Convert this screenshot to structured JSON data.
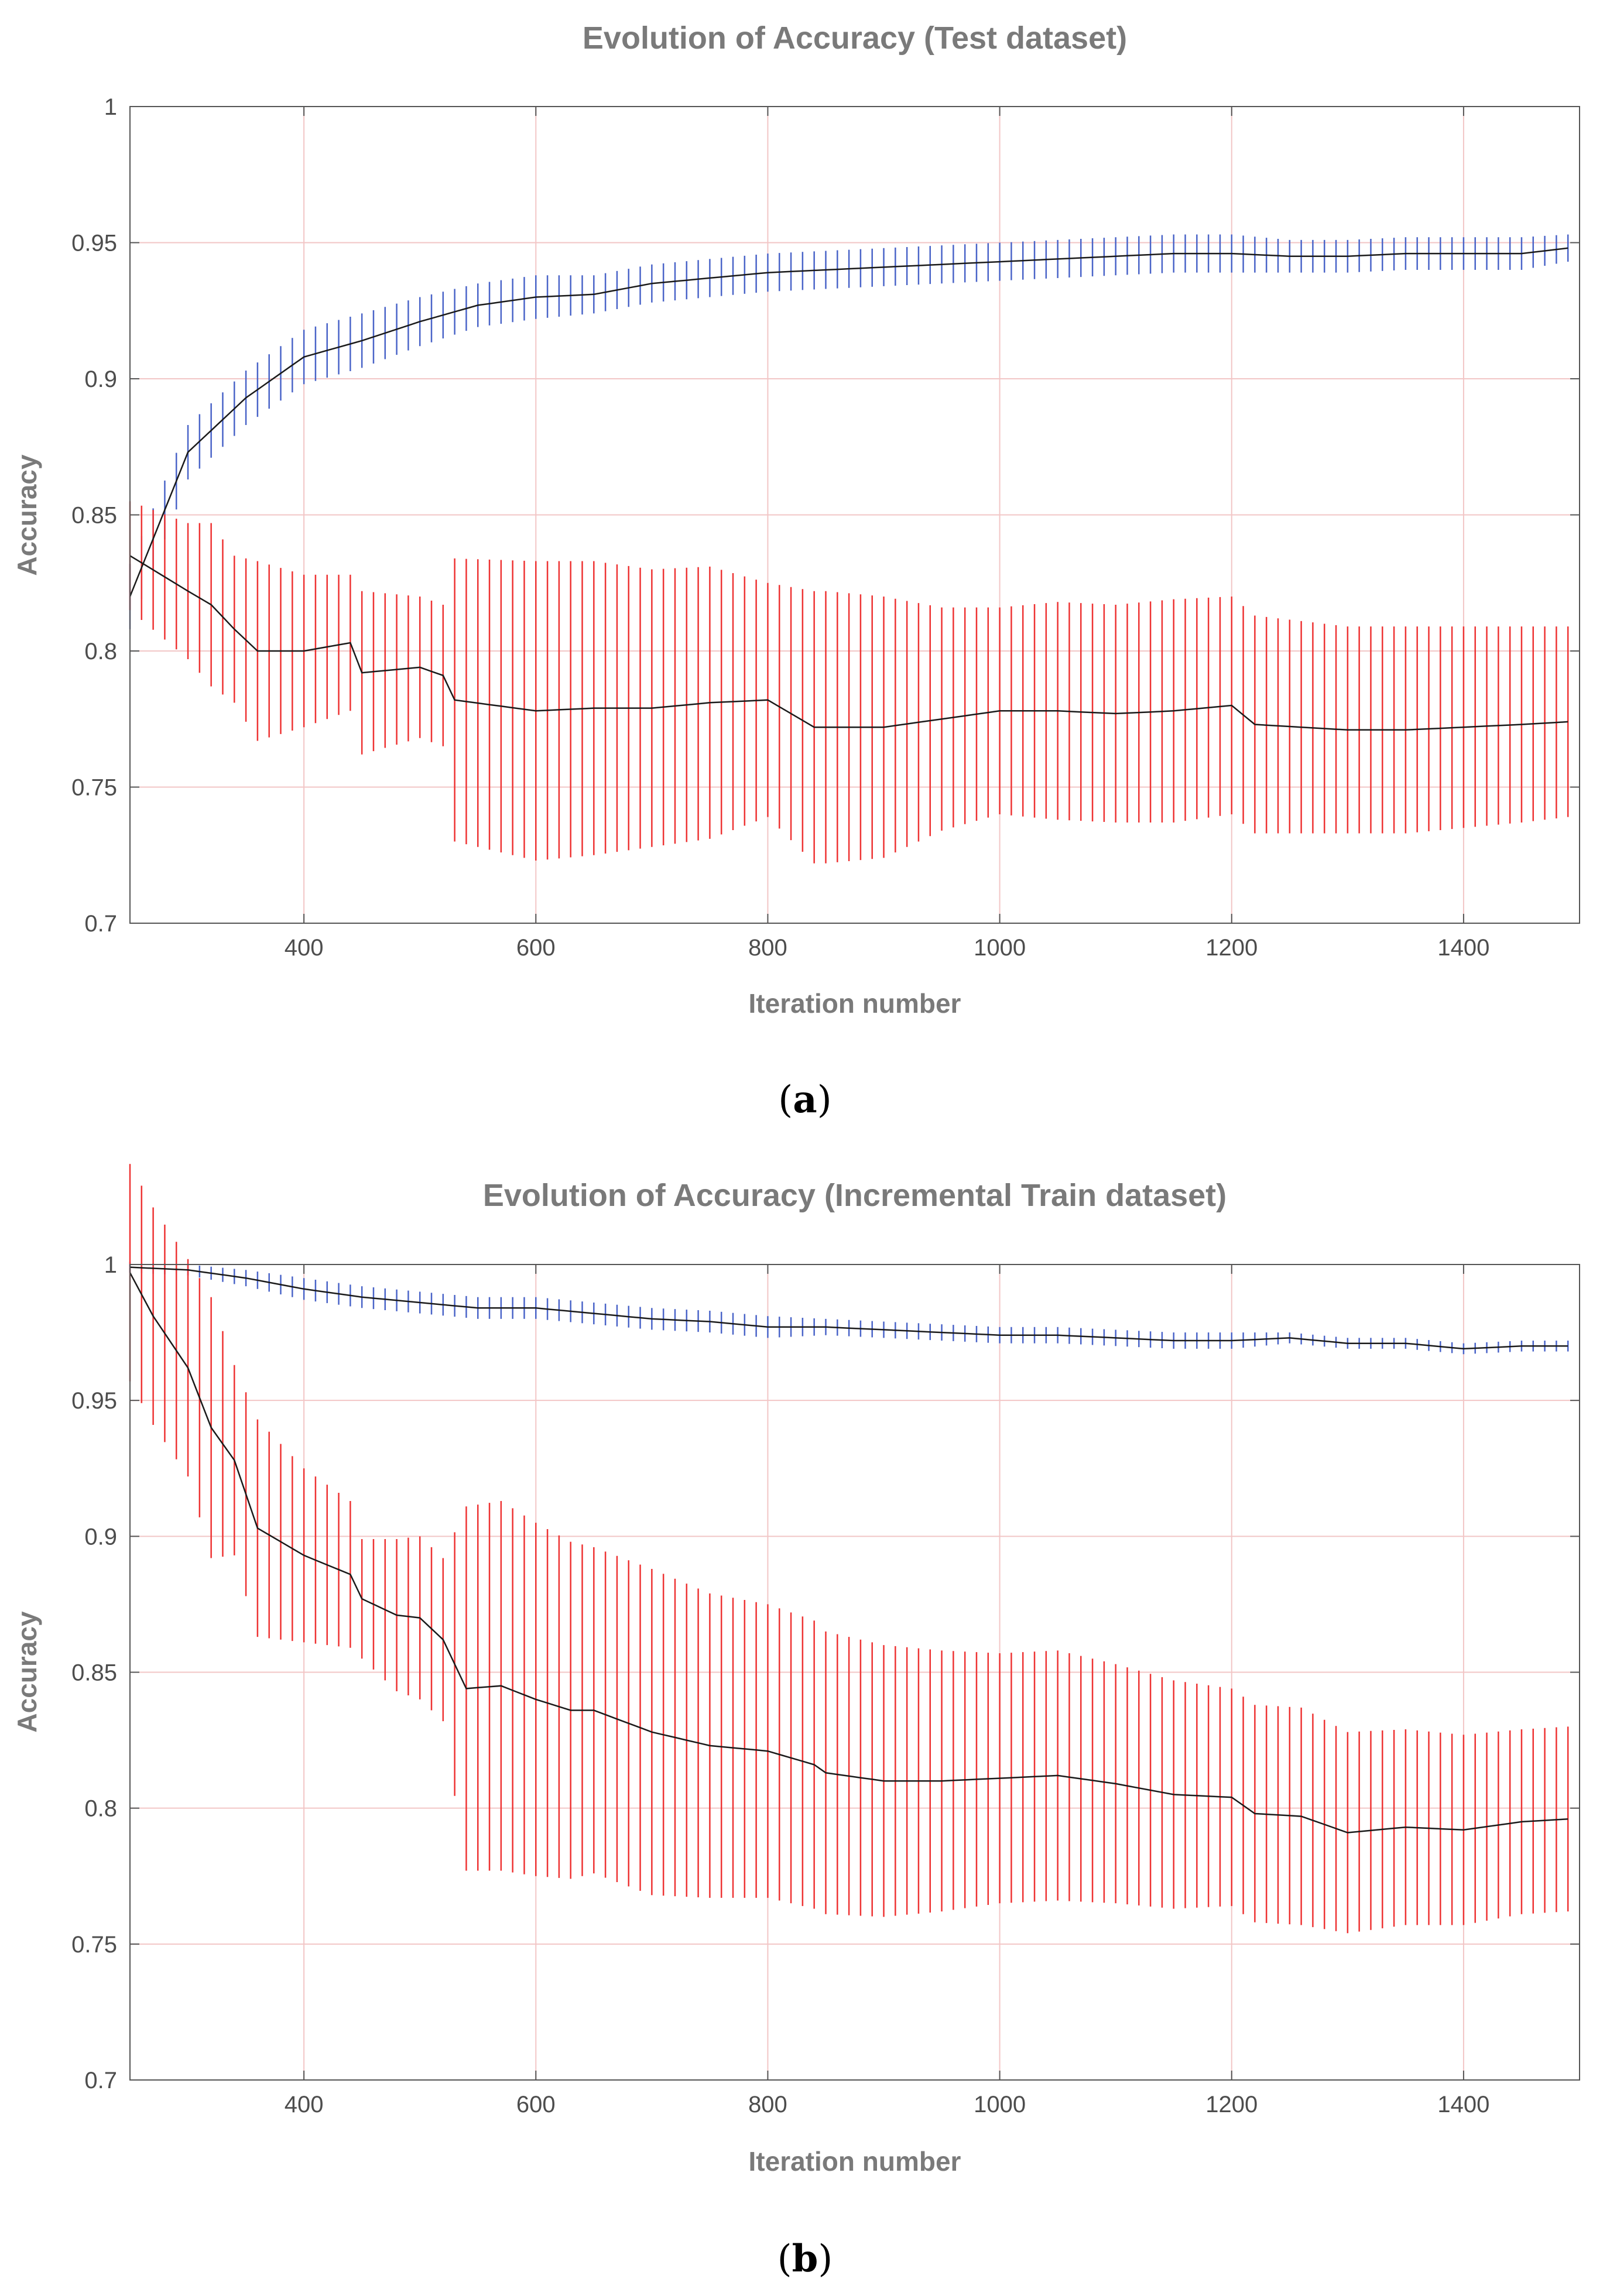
{
  "figure": {
    "captions": [
      {
        "open": "(",
        "letter": "a",
        "close": ")"
      },
      {
        "open": "(",
        "letter": "b",
        "close": ")"
      }
    ]
  },
  "chart_data": [
    {
      "type": "line",
      "title": "Evolution of Accuracy   (Test dataset)",
      "xlabel": "Iteration number",
      "ylabel": "Accuracy",
      "xlim": [
        250,
        1500
      ],
      "ylim": [
        0.7,
        1.0
      ],
      "xticks": [
        400,
        600,
        800,
        1000,
        1200,
        1400
      ],
      "yticks": [
        0.7,
        0.75,
        0.8,
        0.85,
        0.9,
        0.95,
        1.0
      ],
      "ytick_labels": [
        "0.7",
        "0.75",
        "0.8",
        "0.85",
        "0.9",
        "0.95",
        "1"
      ],
      "grid": true,
      "colors": {
        "upper_error": "#4a64c8",
        "lower_error": "#ee3333",
        "mean": "#1a1a1a",
        "grid": "#f2c6c6",
        "axis": "#555555"
      },
      "series": [
        {
          "name": "upper",
          "error_color": "#4a64c8",
          "x": [
            250,
            300,
            350,
            400,
            450,
            500,
            550,
            600,
            650,
            700,
            750,
            800,
            850,
            900,
            950,
            1000,
            1050,
            1100,
            1150,
            1200,
            1250,
            1300,
            1350,
            1400,
            1450,
            1490
          ],
          "mean": [
            0.82,
            0.873,
            0.893,
            0.908,
            0.914,
            0.921,
            0.927,
            0.93,
            0.931,
            0.935,
            0.937,
            0.939,
            0.94,
            0.941,
            0.942,
            0.943,
            0.944,
            0.945,
            0.946,
            0.946,
            0.945,
            0.945,
            0.946,
            0.946,
            0.946,
            0.948
          ],
          "error": [
            0.012,
            0.01,
            0.01,
            0.01,
            0.01,
            0.009,
            0.008,
            0.008,
            0.007,
            0.007,
            0.007,
            0.007,
            0.007,
            0.007,
            0.007,
            0.007,
            0.007,
            0.007,
            0.007,
            0.007,
            0.006,
            0.006,
            0.006,
            0.006,
            0.006,
            0.005
          ]
        },
        {
          "name": "lower",
          "error_color": "#ee3333",
          "x": [
            250,
            300,
            320,
            340,
            360,
            400,
            440,
            450,
            500,
            520,
            530,
            600,
            650,
            700,
            750,
            800,
            840,
            850,
            900,
            950,
            1000,
            1050,
            1100,
            1150,
            1200,
            1220,
            1300,
            1350,
            1400,
            1450,
            1490
          ],
          "mean": [
            0.835,
            0.822,
            0.817,
            0.808,
            0.8,
            0.8,
            0.803,
            0.792,
            0.794,
            0.791,
            0.782,
            0.778,
            0.779,
            0.779,
            0.781,
            0.782,
            0.772,
            0.772,
            0.772,
            0.775,
            0.778,
            0.778,
            0.777,
            0.778,
            0.78,
            0.773,
            0.771,
            0.771,
            0.772,
            0.773,
            0.774
          ],
          "error": [
            0.02,
            0.025,
            0.03,
            0.027,
            0.033,
            0.028,
            0.025,
            0.03,
            0.026,
            0.026,
            0.052,
            0.055,
            0.054,
            0.051,
            0.05,
            0.043,
            0.05,
            0.05,
            0.048,
            0.041,
            0.038,
            0.04,
            0.04,
            0.041,
            0.04,
            0.04,
            0.038,
            0.038,
            0.037,
            0.036,
            0.035
          ]
        }
      ]
    },
    {
      "type": "line",
      "title": "Evolution of Accuracy   (Incremental Train dataset)",
      "xlabel": "Iteration number",
      "ylabel": "Accuracy",
      "xlim": [
        250,
        1500
      ],
      "ylim": [
        0.7,
        1.0
      ],
      "xticks": [
        400,
        600,
        800,
        1000,
        1200,
        1400
      ],
      "yticks": [
        0.7,
        0.75,
        0.8,
        0.85,
        0.9,
        0.95,
        1.0
      ],
      "ytick_labels": [
        "0.7",
        "0.75",
        "0.8",
        "0.85",
        "0.9",
        "0.95",
        "1"
      ],
      "grid": true,
      "colors": {
        "upper_error": "#4a64c8",
        "lower_error": "#ee3333",
        "mean": "#1a1a1a",
        "grid": "#f2c6c6",
        "axis": "#555555"
      },
      "series": [
        {
          "name": "upper",
          "error_color": "#4a64c8",
          "x": [
            250,
            300,
            350,
            400,
            450,
            500,
            550,
            600,
            650,
            700,
            750,
            800,
            850,
            900,
            950,
            1000,
            1050,
            1100,
            1150,
            1200,
            1250,
            1300,
            1350,
            1400,
            1450,
            1490
          ],
          "mean": [
            0.999,
            0.998,
            0.995,
            0.991,
            0.988,
            0.986,
            0.984,
            0.984,
            0.982,
            0.98,
            0.979,
            0.977,
            0.977,
            0.976,
            0.975,
            0.974,
            0.974,
            0.973,
            0.972,
            0.972,
            0.973,
            0.971,
            0.971,
            0.969,
            0.97,
            0.97
          ],
          "error": [
            0.002,
            0.002,
            0.003,
            0.004,
            0.004,
            0.004,
            0.004,
            0.004,
            0.004,
            0.004,
            0.004,
            0.004,
            0.003,
            0.003,
            0.003,
            0.003,
            0.003,
            0.003,
            0.003,
            0.003,
            0.002,
            0.002,
            0.002,
            0.002,
            0.002,
            0.002
          ]
        },
        {
          "name": "lower",
          "error_color": "#ee3333",
          "x": [
            250,
            270,
            300,
            320,
            340,
            360,
            400,
            440,
            450,
            480,
            500,
            520,
            540,
            570,
            600,
            630,
            650,
            700,
            750,
            800,
            840,
            850,
            900,
            950,
            1000,
            1050,
            1100,
            1150,
            1200,
            1220,
            1260,
            1300,
            1350,
            1400,
            1450,
            1490
          ],
          "mean": [
            0.997,
            0.981,
            0.962,
            0.94,
            0.928,
            0.903,
            0.893,
            0.886,
            0.877,
            0.871,
            0.87,
            0.862,
            0.844,
            0.845,
            0.84,
            0.836,
            0.836,
            0.828,
            0.823,
            0.821,
            0.816,
            0.813,
            0.81,
            0.81,
            0.811,
            0.812,
            0.809,
            0.805,
            0.804,
            0.798,
            0.797,
            0.791,
            0.793,
            0.792,
            0.795,
            0.796
          ],
          "error": [
            0.04,
            0.04,
            0.04,
            0.048,
            0.035,
            0.04,
            0.032,
            0.027,
            0.022,
            0.028,
            0.03,
            0.03,
            0.067,
            0.068,
            0.065,
            0.062,
            0.06,
            0.06,
            0.056,
            0.054,
            0.053,
            0.052,
            0.05,
            0.048,
            0.046,
            0.046,
            0.044,
            0.042,
            0.04,
            0.04,
            0.04,
            0.037,
            0.036,
            0.035,
            0.034,
            0.034
          ]
        }
      ]
    }
  ]
}
